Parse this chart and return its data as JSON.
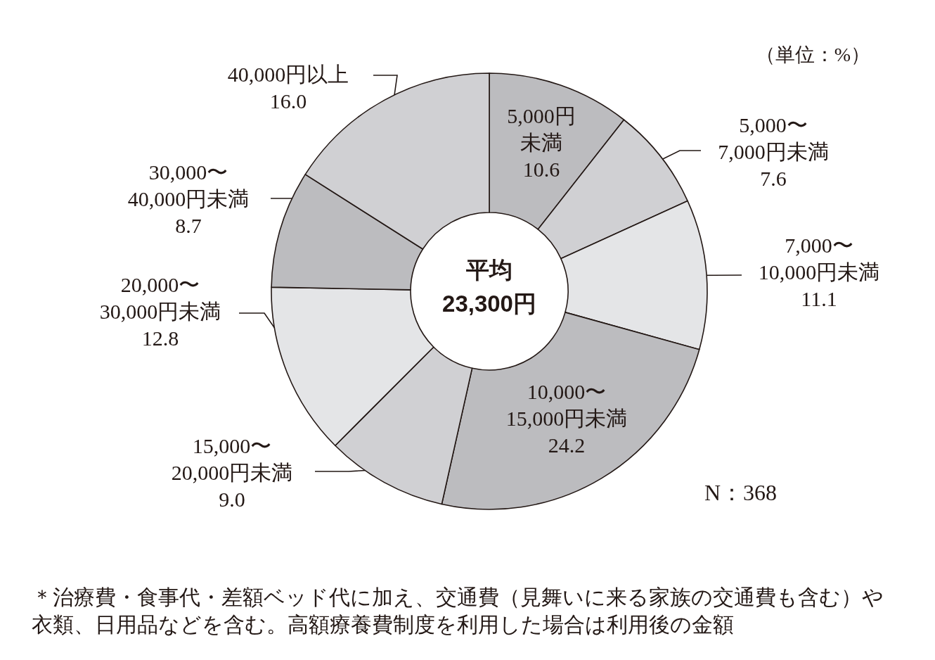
{
  "chart_data": {
    "type": "donut",
    "categories": [
      "5,000円未満",
      "5,000〜7,000円未満",
      "7,000〜10,000円未満",
      "10,000〜15,000円未満",
      "15,000〜20,000円未満",
      "20,000〜30,000円未満",
      "30,000〜40,000円未満",
      "40,000円以上"
    ],
    "values": [
      10.6,
      7.6,
      11.1,
      24.2,
      9.0,
      12.8,
      8.7,
      16.0
    ],
    "value_labels": [
      "10.6",
      "7.6",
      "11.1",
      "24.2",
      "9.0",
      "12.8",
      "8.7",
      "16.0"
    ],
    "colors": [
      "#bcbcbf",
      "#d0d0d3",
      "#e4e5e7",
      "#bcbcbf",
      "#d0d0d3",
      "#e4e5e7",
      "#bcbcbf",
      "#d0d0d3"
    ],
    "annotations": [
      "平均",
      "23,300円",
      "（単位：%）",
      "N：368",
      "＊治療費・食事代・差額ベッド代に加え、交通費（見舞いに来る家族の交通費も含む）や衣類、日用品などを含む。高額療養費制度を利用した場合は利用後の金額"
    ]
  }
}
